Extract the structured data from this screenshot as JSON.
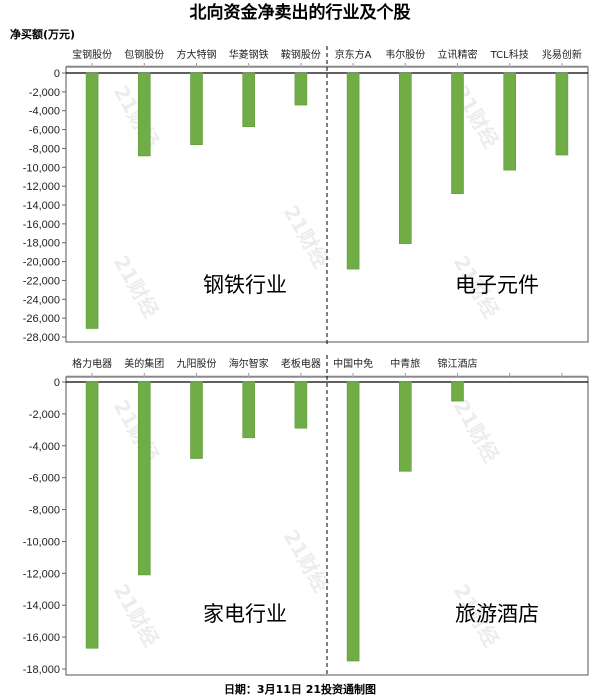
{
  "chart_data": {
    "title": "北向资金净卖出的行业及个股",
    "ylabel": "净买额(万元)",
    "footer": "日期：3月11日 21投资通制图",
    "watermark": "21财经",
    "colors": {
      "bar": "#70ad47",
      "bar_edge": "#5e9a3a"
    },
    "panels": [
      {
        "type": "bar",
        "ylim": [
          -28000,
          0
        ],
        "yticks": [
          0,
          -2000,
          -4000,
          -6000,
          -8000,
          -10000,
          -12000,
          -14000,
          -16000,
          -18000,
          -20000,
          -22000,
          -24000,
          -26000,
          -28000
        ],
        "ytick_labels": [
          "0",
          "-2,000",
          "-4,000",
          "-6,000",
          "-8,000",
          "-10,000",
          "-12,000",
          "-14,000",
          "-16,000",
          "-18,000",
          "-20,000",
          "-22,000",
          "-24,000",
          "-26,000",
          "-28,000"
        ],
        "groups": [
          {
            "label": "钢铁行业",
            "categories": [
              "宝钢股份",
              "包钢股份",
              "方大特钢",
              "华菱钢铁",
              "鞍钢股份"
            ],
            "values": [
              -27100,
              -8800,
              -7600,
              -5700,
              -3400
            ]
          },
          {
            "label": "电子元件",
            "categories": [
              "京东方A",
              "韦尔股份",
              "立讯精密",
              "TCL科技",
              "兆易创新"
            ],
            "values": [
              -20800,
              -18100,
              -12800,
              -10300,
              -8700
            ]
          }
        ]
      },
      {
        "type": "bar",
        "ylim": [
          -18000,
          0
        ],
        "yticks": [
          0,
          -2000,
          -4000,
          -6000,
          -8000,
          -10000,
          -12000,
          -14000,
          -16000,
          -18000
        ],
        "ytick_labels": [
          "0",
          "-2,000",
          "-4,000",
          "-6,000",
          "-8,000",
          "-10,000",
          "-12,000",
          "-14,000",
          "-16,000",
          "-18,000"
        ],
        "groups": [
          {
            "label": "家电行业",
            "categories": [
              "格力电器",
              "美的集团",
              "九阳股份",
              "海尔智家",
              "老板电器"
            ],
            "values": [
              -16700,
              -12100,
              -4800,
              -3500,
              -2900
            ]
          },
          {
            "label": "旅游酒店",
            "categories": [
              "中国中免",
              "中青旅",
              "锦江酒店"
            ],
            "values": [
              -17500,
              -5600,
              -1200
            ]
          }
        ]
      }
    ]
  }
}
